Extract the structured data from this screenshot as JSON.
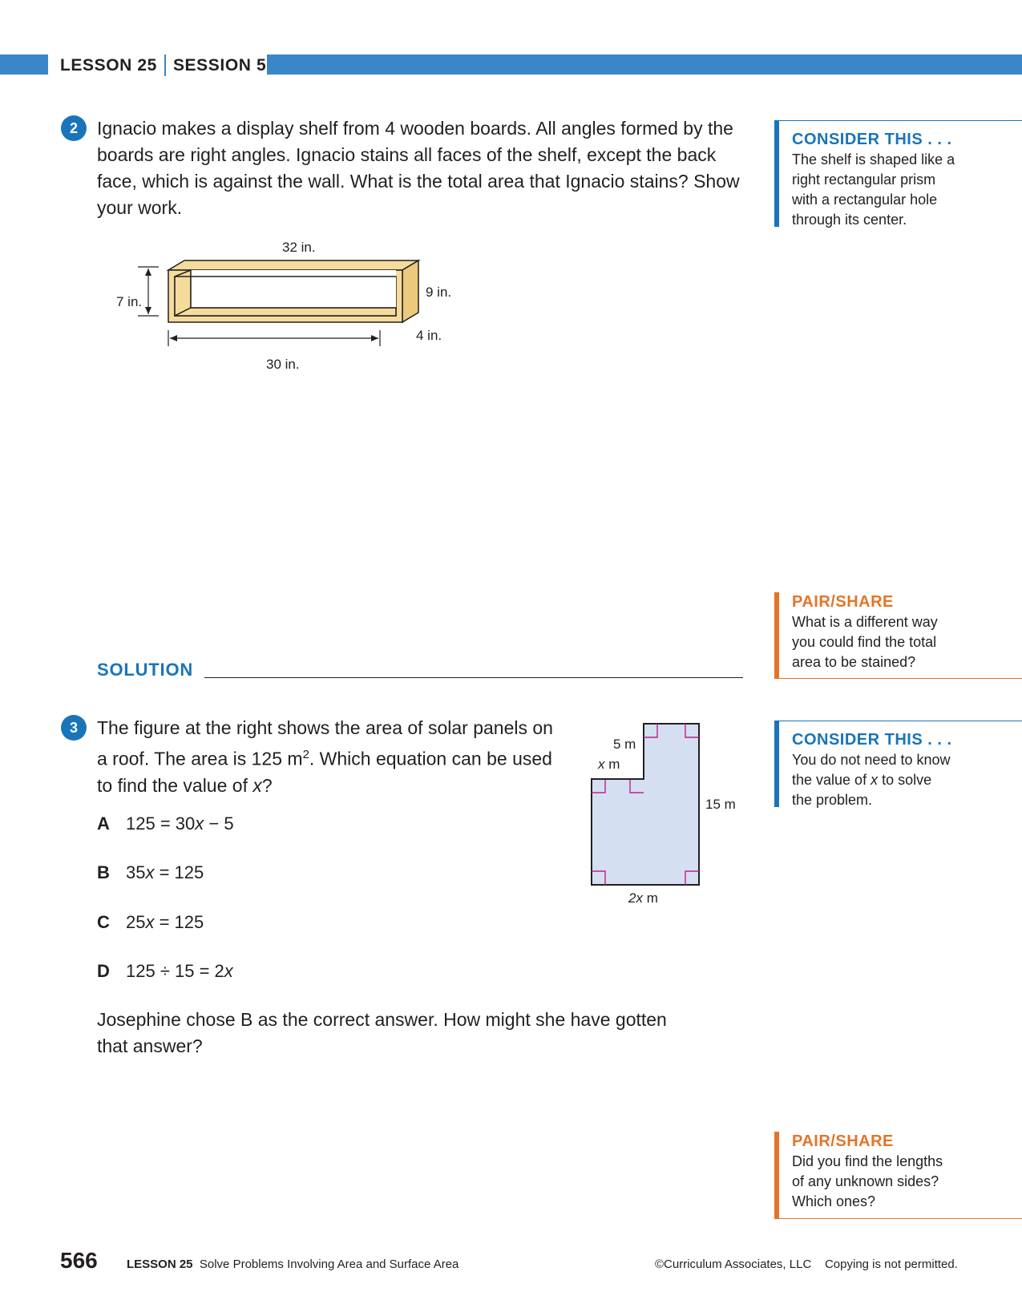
{
  "header": {
    "lesson": "LESSON 25",
    "session": "SESSION 5"
  },
  "q2": {
    "number": "2",
    "text": "Ignacio makes a display shelf from 4 wooden boards. All angles formed by the boards are right angles. Ignacio stains all faces of the shelf, except the back face, which is against the wall. What is the total area that Ignacio stains? Show your work.",
    "figure": {
      "top_length": "32 in.",
      "height": "7 in.",
      "outer_height": "9 in.",
      "depth": "4 in.",
      "inner_length": "30 in."
    },
    "solution_label": "SOLUTION"
  },
  "q3": {
    "number": "3",
    "text_parts": [
      "The figure at the right shows the area of solar panels on a roof. The area is 125 m",
      "2",
      ". Which equation can be used to find the value of ",
      "x",
      "?"
    ],
    "choices": [
      {
        "letter": "A",
        "parts": [
          "125 = 30",
          "x",
          " − 5"
        ]
      },
      {
        "letter": "B",
        "parts": [
          "35",
          "x",
          " = 125",
          ""
        ]
      },
      {
        "letter": "C",
        "parts": [
          "25",
          "x",
          " = 125",
          ""
        ]
      },
      {
        "letter": "D",
        "parts": [
          "125 ÷ 15 = 2",
          "x",
          "",
          ""
        ]
      }
    ],
    "followup": "Josephine chose B as the correct answer. How might she have gotten that answer?",
    "figure": {
      "top_label": "5 m",
      "step_label_var": "x",
      "step_label_unit": " m",
      "right_label": "15 m",
      "bottom_label_var": "2x",
      "bottom_label_unit": " m",
      "fill_color": "#d5dff2"
    }
  },
  "sidebar": {
    "consider1": {
      "title": "CONSIDER THIS . . .",
      "body": "The shelf is shaped like a right rectangular prism with a rectangular hole through its center."
    },
    "pair1": {
      "title": "PAIR/SHARE",
      "body": "What is a different way you could find the total area to be stained?"
    },
    "consider2": {
      "title": "CONSIDER THIS . . .",
      "body_parts": [
        "You do not need to know the value of ",
        "x",
        " to solve the problem."
      ]
    },
    "pair2": {
      "title": "PAIR/SHARE",
      "body": "Did you find the lengths of any unknown sides? Which ones?"
    }
  },
  "footer": {
    "page_number": "566",
    "lesson_label": "LESSON 25",
    "lesson_title": "Solve Problems Involving Area and Surface Area",
    "copyright": "©Curriculum Associates, LLC",
    "notice": "Copying is not permitted."
  }
}
